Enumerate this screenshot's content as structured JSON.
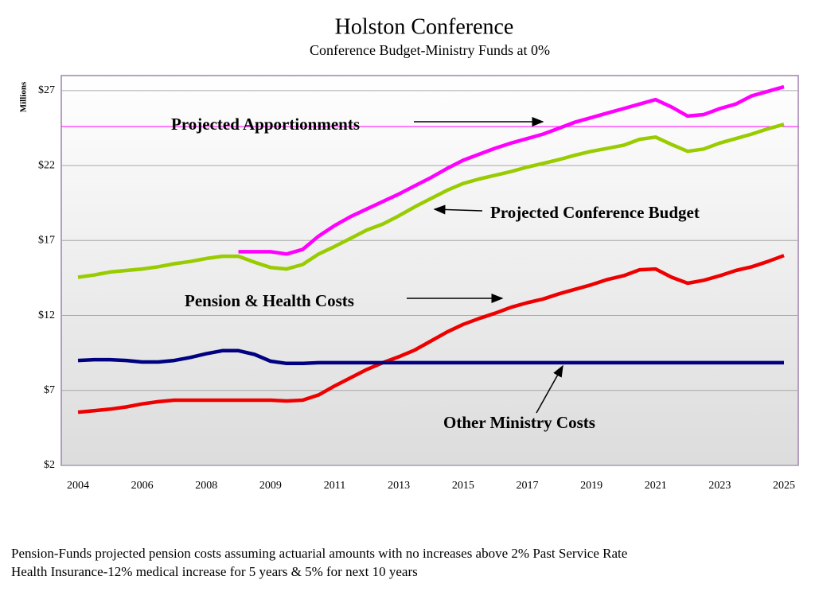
{
  "chart_data": {
    "type": "line",
    "title": "Holston Conference",
    "subtitle": "Conference Budget-Ministry Funds at 0%",
    "y_label": "Millions",
    "categories": [
      "2004",
      null,
      null,
      null,
      "2006",
      null,
      null,
      null,
      "2008",
      null,
      null,
      null,
      "2009",
      null,
      null,
      null,
      "2011",
      null,
      null,
      null,
      "2013",
      null,
      null,
      null,
      "2015",
      null,
      null,
      null,
      "2017",
      null,
      null,
      null,
      "2019",
      null,
      null,
      null,
      "2021",
      null,
      null,
      null,
      "2023",
      null,
      null,
      null,
      "2025"
    ],
    "ylim": [
      2,
      28
    ],
    "yticks": [
      {
        "value": 2,
        "label": "$2"
      },
      {
        "value": 7,
        "label": "$7"
      },
      {
        "value": 12,
        "label": "$12"
      },
      {
        "value": 17,
        "label": "$17"
      },
      {
        "value": 22,
        "label": "$22"
      },
      {
        "value": 27,
        "label": "$27"
      }
    ],
    "grid": true,
    "reference_line": {
      "value": 24.6,
      "color": "#ff00ff"
    },
    "series": [
      {
        "name": "Projected Conference Budget",
        "color": "#99cc00",
        "values": [
          14.55,
          14.7,
          14.9,
          15.0,
          15.1,
          15.25,
          15.45,
          15.6,
          15.8,
          15.95,
          15.95,
          15.55,
          15.2,
          15.1,
          15.4,
          16.1,
          16.6,
          17.15,
          17.7,
          18.1,
          18.65,
          19.25,
          19.8,
          20.35,
          20.8,
          21.1,
          21.35,
          21.6,
          21.9,
          22.15,
          22.4,
          22.7,
          22.95,
          23.15,
          23.35,
          23.75,
          23.9,
          23.4,
          22.95,
          23.1,
          23.5,
          23.8,
          24.1,
          24.45,
          24.75
        ]
      },
      {
        "name": "Projected Apportionments",
        "color": "#ff00ff",
        "values": [
          null,
          null,
          null,
          null,
          null,
          null,
          null,
          null,
          null,
          null,
          16.25,
          16.25,
          16.25,
          16.1,
          16.4,
          17.3,
          18.0,
          18.6,
          19.1,
          19.6,
          20.1,
          20.65,
          21.2,
          21.8,
          22.35,
          22.75,
          23.15,
          23.5,
          23.8,
          24.1,
          24.5,
          24.9,
          25.2,
          25.5,
          25.8,
          26.1,
          26.4,
          25.9,
          25.3,
          25.4,
          25.8,
          26.1,
          26.65,
          26.95,
          27.25
        ]
      },
      {
        "name": "Pension & Health Costs",
        "color": "#ee0000",
        "values": [
          5.55,
          5.65,
          5.75,
          5.9,
          6.1,
          6.25,
          6.35,
          6.35,
          6.35,
          6.35,
          6.35,
          6.35,
          6.35,
          6.3,
          6.35,
          6.7,
          7.3,
          7.85,
          8.4,
          8.85,
          9.25,
          9.7,
          10.3,
          10.9,
          11.4,
          11.8,
          12.15,
          12.55,
          12.85,
          13.1,
          13.45,
          13.75,
          14.05,
          14.4,
          14.65,
          15.05,
          15.1,
          14.55,
          14.15,
          14.35,
          14.65,
          15.0,
          15.25,
          15.6,
          16.0
        ]
      },
      {
        "name": "Other Ministry Costs",
        "color": "#000080",
        "values": [
          9.0,
          9.05,
          9.05,
          9.0,
          8.9,
          8.9,
          9.0,
          9.2,
          9.45,
          9.65,
          9.65,
          9.4,
          8.95,
          8.8,
          8.8,
          8.85,
          8.85,
          8.85,
          8.85,
          8.85,
          8.85,
          8.85,
          8.85,
          8.85,
          8.85,
          8.85,
          8.85,
          8.85,
          8.85,
          8.85,
          8.85,
          8.85,
          8.85,
          8.85,
          8.85,
          8.85,
          8.85,
          8.85,
          8.85,
          8.85,
          8.85,
          8.85,
          8.85,
          8.85,
          8.85
        ]
      }
    ],
    "footnotes": [
      "Pension-Funds projected pension costs assuming actuarial amounts with no increases above 2% Past Service Rate",
      "Health Insurance-12% medical increase for 5 years & 5% for next 10 years"
    ]
  }
}
